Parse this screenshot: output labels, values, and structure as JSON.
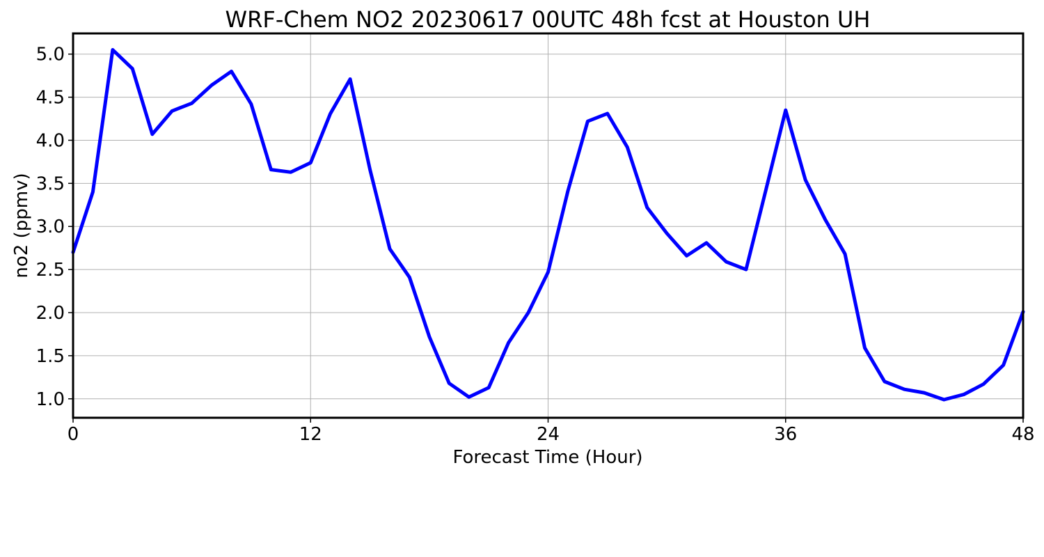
{
  "chart_data": {
    "type": "line",
    "title": "WRF-Chem NO2  20230617 00UTC 48h fcst at Houston UH",
    "xlabel": "Forecast Time (Hour)",
    "ylabel": "no2  (ppmv)",
    "xlim": [
      0,
      48
    ],
    "ylim": [
      0.78,
      5.24
    ],
    "xticks": [
      0,
      12,
      24,
      36,
      48
    ],
    "xtick_labels": [
      "0",
      "12",
      "24",
      "36",
      "48"
    ],
    "yticks": [
      1.0,
      1.5,
      2.0,
      2.5,
      3.0,
      3.5,
      4.0,
      4.5,
      5.0
    ],
    "ytick_labels": [
      "1.0",
      "1.5",
      "2.0",
      "2.5",
      "3.0",
      "3.5",
      "4.0",
      "4.5",
      "5.0"
    ],
    "grid": true,
    "x": [
      0,
      1,
      2,
      3,
      4,
      5,
      6,
      7,
      8,
      9,
      10,
      11,
      12,
      13,
      14,
      15,
      16,
      17,
      18,
      19,
      20,
      21,
      22,
      23,
      24,
      25,
      26,
      27,
      28,
      29,
      30,
      31,
      32,
      33,
      34,
      35,
      36,
      37,
      38,
      39,
      40,
      41,
      42,
      43,
      44,
      45,
      46,
      47,
      48
    ],
    "series": [
      {
        "color": "#0000ff",
        "values": [
          2.7,
          3.4,
          5.05,
          4.83,
          4.07,
          4.34,
          4.43,
          4.64,
          4.8,
          4.42,
          3.66,
          3.63,
          3.74,
          4.31,
          4.71,
          3.66,
          2.74,
          2.41,
          1.72,
          1.18,
          1.02,
          1.13,
          1.65,
          2.0,
          2.47,
          3.41,
          4.22,
          4.31,
          3.92,
          3.22,
          2.92,
          2.66,
          2.81,
          2.59,
          2.5,
          3.42,
          4.35,
          3.54,
          3.08,
          2.68,
          1.59,
          1.2,
          1.11,
          1.07,
          0.99,
          1.05,
          1.17,
          1.39,
          2.01
        ]
      }
    ]
  }
}
